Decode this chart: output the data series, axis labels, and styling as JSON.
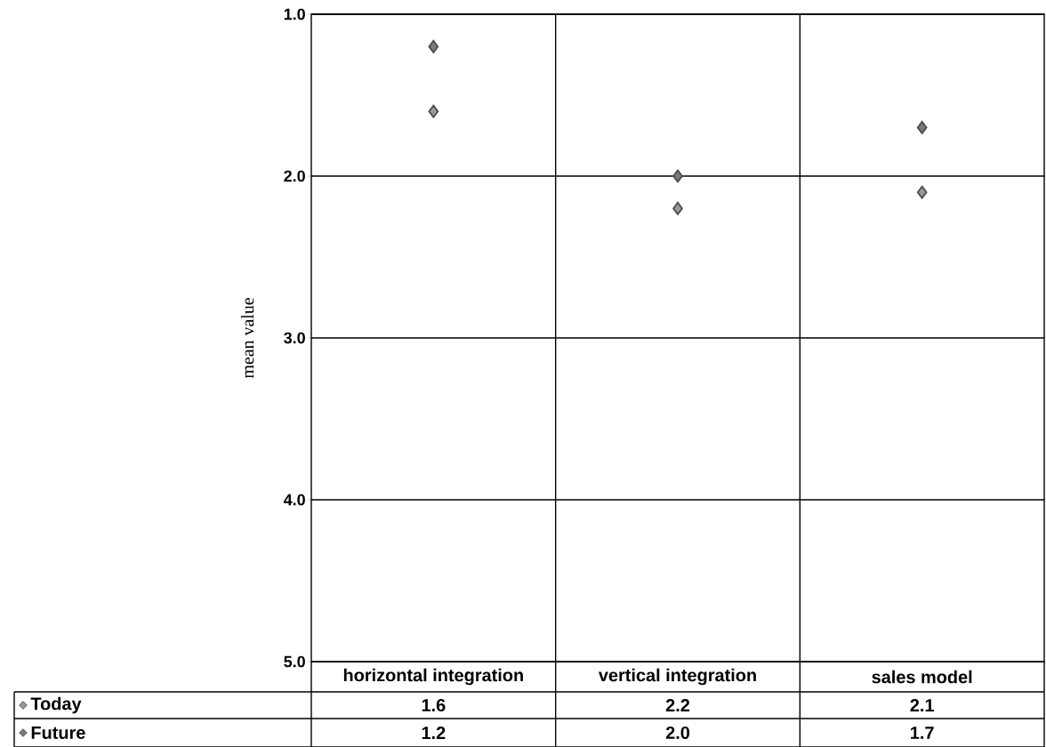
{
  "chart_data": {
    "type": "scatter",
    "ylabel": "mean value",
    "categories": [
      "horizontal integration",
      "vertical integration",
      "sales model"
    ],
    "series": [
      {
        "name": "Today",
        "color": "#9a9a9a",
        "values": [
          1.6,
          2.2,
          2.1
        ],
        "value_labels": [
          "1.6",
          "2.2",
          "2.1"
        ]
      },
      {
        "name": "Future",
        "color": "#7a7a7a",
        "values": [
          1.2,
          2.0,
          1.7
        ],
        "value_labels": [
          "1.2",
          "2.0",
          "1.7"
        ]
      }
    ],
    "ylim": [
      5,
      1
    ],
    "yticks": [
      {
        "value": 1,
        "label": "1.0"
      },
      {
        "value": 2,
        "label": "2.0"
      },
      {
        "value": 3,
        "label": "3.0"
      },
      {
        "value": 4,
        "label": "4.0"
      },
      {
        "value": 5,
        "label": "5.0"
      }
    ],
    "grid": true,
    "marker": "diamond",
    "legend": "bottom left"
  }
}
